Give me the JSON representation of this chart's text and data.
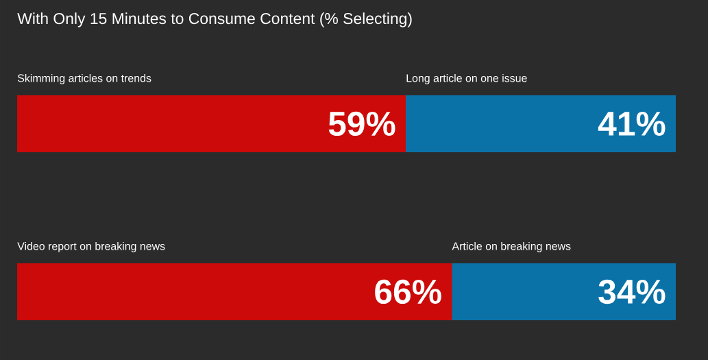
{
  "chart_data": [
    {
      "type": "bar",
      "title": "With Only 15 Minutes to Consume Content (% Selecting)",
      "orientation": "horizontal",
      "stacked": true,
      "tick_labels": false,
      "categories": [
        null
      ],
      "series": [
        {
          "name": "Skimming articles on trends",
          "color": "#cc0a0a",
          "values": [
            59
          ],
          "value_labels": [
            "59%"
          ]
        },
        {
          "name": "Long article on one issue",
          "color": "#0b72a8",
          "values": [
            41
          ],
          "value_labels": [
            "41%"
          ]
        }
      ]
    },
    {
      "type": "bar",
      "orientation": "horizontal",
      "stacked": true,
      "tick_labels": false,
      "categories": [
        null
      ],
      "series": [
        {
          "name": "Video report on breaking news",
          "color": "#cc0a0a",
          "values": [
            66
          ],
          "value_labels": [
            "66%"
          ]
        },
        {
          "name": "Article on breaking news",
          "color": "#0b72a8",
          "values": [
            34
          ],
          "value_labels": [
            "34%"
          ]
        }
      ]
    }
  ]
}
